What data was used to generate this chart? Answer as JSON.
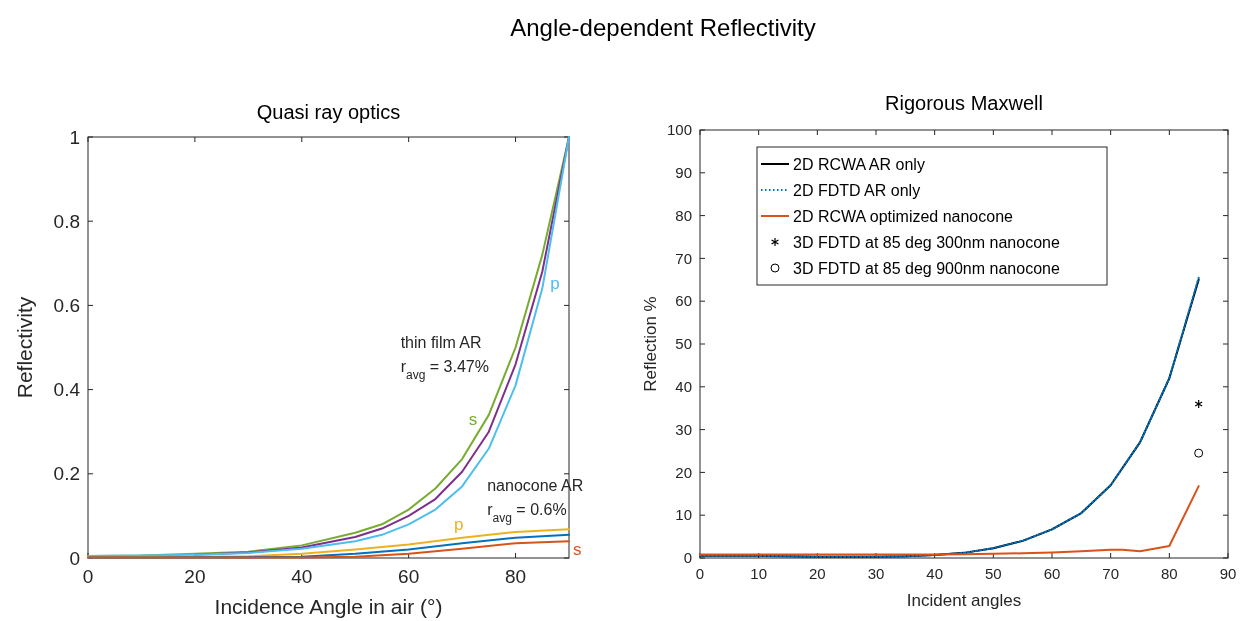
{
  "chart_data": [
    {
      "type": "line",
      "title": "Angle-dependent Reflectivity",
      "subtitle": "Quasi ray optics",
      "xlabel": "Incidence Angle in air (°)",
      "ylabel": "Reflectivity",
      "xlim": [
        0,
        90
      ],
      "ylim": [
        0,
        1
      ],
      "xticks": [
        0,
        20,
        40,
        60,
        80
      ],
      "yticks": [
        0,
        0.2,
        0.4,
        0.6,
        0.8,
        1
      ],
      "legend": false,
      "grid": false,
      "annotations": [
        "thin film AR\nr$_{avg}$ = 3.47%",
        "nanocone AR\nr$_{avg}$ = 0.6%"
      ],
      "series": [
        {
          "name": "s",
          "color": "#77ac30",
          "x": [
            0,
            10,
            20,
            30,
            40,
            50,
            55,
            60,
            65,
            70,
            75,
            80,
            85,
            90
          ],
          "values": [
            0.005,
            0.006,
            0.01,
            0.015,
            0.03,
            0.06,
            0.08,
            0.115,
            0.165,
            0.235,
            0.34,
            0.5,
            0.72,
            1
          ]
        },
        {
          "color": "#7e2f8e",
          "x": [
            20,
            30,
            40,
            50,
            55,
            60,
            65,
            70,
            75,
            80,
            85,
            90
          ],
          "values": [
            0.008,
            0.013,
            0.025,
            0.05,
            0.07,
            0.1,
            0.14,
            0.205,
            0.3,
            0.46,
            0.68,
            1
          ]
        },
        {
          "name": "p",
          "color": "#4dbeee",
          "x": [
            0,
            10,
            20,
            30,
            40,
            50,
            55,
            60,
            65,
            70,
            75,
            80,
            85,
            90
          ],
          "values": [
            0.005,
            0.006,
            0.008,
            0.012,
            0.022,
            0.04,
            0.055,
            0.08,
            0.115,
            0.17,
            0.26,
            0.41,
            0.64,
            1
          ]
        },
        {
          "name": "p",
          "color": "#edb120",
          "x": [
            0,
            10,
            20,
            30,
            40,
            50,
            60,
            70,
            80,
            90
          ],
          "values": [
            0.002,
            0.002,
            0.003,
            0.004,
            0.01,
            0.02,
            0.032,
            0.048,
            0.062,
            0.068
          ]
        },
        {
          "color": "#0072bd",
          "x": [
            0,
            10,
            20,
            30,
            40,
            50,
            60,
            70,
            80,
            90
          ],
          "values": [
            0.001,
            0.001,
            0.002,
            0.002,
            0.003,
            0.01,
            0.02,
            0.035,
            0.048,
            0.055
          ]
        },
        {
          "name": "s",
          "color": "#d95319",
          "x": [
            0,
            10,
            20,
            30,
            40,
            50,
            60,
            70,
            80,
            90
          ],
          "values": [
            0.001,
            0.001,
            0.001,
            0.001,
            0.001,
            0.003,
            0.01,
            0.022,
            0.035,
            0.04
          ]
        }
      ]
    },
    {
      "type": "line",
      "title": "Rigorous Maxwell",
      "xlabel": "Incident angles",
      "ylabel": "Reflection %",
      "xlim": [
        0,
        90
      ],
      "ylim": [
        0,
        100
      ],
      "xticks": [
        0,
        10,
        20,
        30,
        40,
        50,
        60,
        70,
        80,
        90
      ],
      "yticks": [
        0,
        10,
        20,
        30,
        40,
        50,
        60,
        70,
        80,
        90,
        100
      ],
      "legend": "top left",
      "grid": false,
      "series": [
        {
          "name": "2D RCWA AR only",
          "color": "#000000",
          "line_style": "solid",
          "x": [
            0,
            5,
            10,
            15,
            20,
            25,
            30,
            35,
            40,
            45,
            50,
            55,
            60,
            65,
            70,
            75,
            80,
            85
          ],
          "values": [
            0.5,
            0.5,
            0.5,
            0.4,
            0.3,
            0.3,
            0.3,
            0.4,
            0.7,
            1.2,
            2.3,
            4,
            6.7,
            10.5,
            17,
            27,
            42,
            65
          ]
        },
        {
          "name": "2D FDTD AR only",
          "color": "#0072bd",
          "line_style": "dotted",
          "x": [
            0,
            5,
            10,
            15,
            20,
            25,
            30,
            35,
            40,
            45,
            50,
            55,
            60,
            65,
            70,
            75,
            80,
            85
          ],
          "values": [
            0.5,
            0.5,
            0.5,
            0.4,
            0.3,
            0.3,
            0.3,
            0.4,
            0.7,
            1.2,
            2.3,
            4,
            6.7,
            10.5,
            17,
            27,
            42,
            65.5
          ]
        },
        {
          "name": "2D RCWA optimized nanocone",
          "color": "#d95319",
          "line_style": "solid",
          "x": [
            0,
            5,
            10,
            15,
            20,
            25,
            30,
            35,
            40,
            45,
            50,
            55,
            60,
            65,
            70,
            72,
            75,
            80,
            85
          ],
          "values": [
            0.8,
            0.8,
            0.8,
            0.8,
            0.8,
            0.8,
            0.8,
            0.8,
            0.8,
            0.9,
            1,
            1.1,
            1.3,
            1.6,
            1.9,
            1.9,
            1.6,
            2.8,
            16.8
          ]
        },
        {
          "name": "3D FDTD at 85 deg 300nm nanocone",
          "type": "scatter",
          "marker": "cross",
          "color": "#000000",
          "x": [
            85
          ],
          "values": [
            36
          ]
        },
        {
          "name": "3D FDTD at 85 deg 900nm nanocone",
          "type": "scatter",
          "marker": "circle",
          "color": "#000000",
          "x": [
            85
          ],
          "values": [
            24.5
          ]
        }
      ]
    }
  ]
}
